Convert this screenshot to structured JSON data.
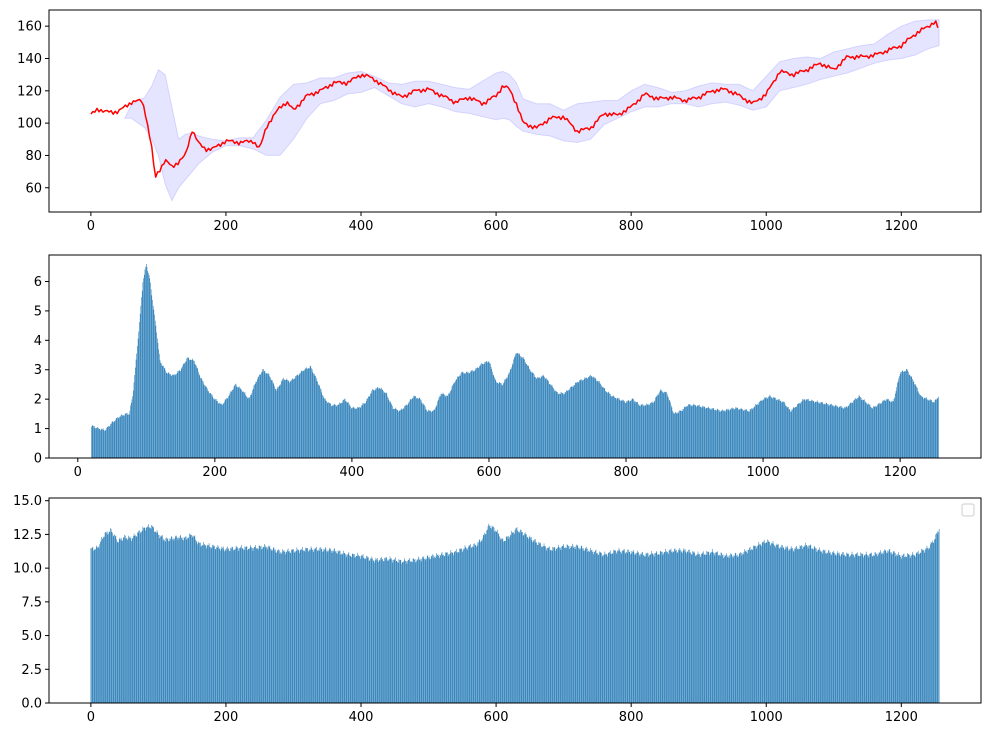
{
  "chart_data": [
    {
      "type": "line",
      "title": "",
      "xlabel": "",
      "ylabel": "",
      "xlim": [
        -62,
        1318
      ],
      "ylim": [
        45,
        170
      ],
      "xticks": [
        0,
        200,
        400,
        600,
        800,
        1000,
        1200
      ],
      "yticks": [
        60,
        80,
        100,
        120,
        140,
        160
      ],
      "grid": false,
      "colors": {
        "line": "#ff0000",
        "band": "#0000ff"
      },
      "series": [
        {
          "kind": "line",
          "x": [
            0,
            10,
            20,
            40,
            60,
            75,
            80,
            90,
            95,
            100,
            110,
            120,
            130,
            140,
            150,
            160,
            170,
            180,
            200,
            220,
            240,
            250,
            260,
            270,
            280,
            290,
            300,
            320,
            340,
            360,
            380,
            400,
            410,
            420,
            440,
            460,
            480,
            500,
            520,
            540,
            560,
            580,
            600,
            610,
            620,
            630,
            640,
            660,
            680,
            700,
            720,
            740,
            760,
            780,
            800,
            820,
            840,
            860,
            880,
            900,
            920,
            940,
            960,
            980,
            1000,
            1020,
            1040,
            1060,
            1080,
            1100,
            1120,
            1140,
            1160,
            1180,
            1200,
            1220,
            1240,
            1250,
            1256
          ],
          "y": [
            105,
            109,
            107,
            107,
            113,
            114,
            108,
            85,
            66,
            70,
            77,
            73,
            76,
            80,
            96,
            87,
            84,
            84,
            89,
            88,
            89,
            84,
            98,
            104,
            110,
            113,
            108,
            117,
            120,
            125,
            125,
            130,
            129,
            127,
            121,
            116,
            120,
            121,
            117,
            113,
            116,
            112,
            117,
            123,
            121,
            112,
            100,
            97,
            103,
            104,
            95,
            97,
            106,
            105,
            110,
            118,
            115,
            116,
            114,
            116,
            120,
            121,
            117,
            112,
            118,
            132,
            130,
            133,
            137,
            133,
            141,
            141,
            142,
            145,
            148,
            155,
            160,
            163,
            157
          ]
        }
      ],
      "band": {
        "x": [
          50,
          60,
          70,
          80,
          90,
          100,
          110,
          120,
          130,
          140,
          150,
          160,
          180,
          200,
          220,
          240,
          260,
          280,
          300,
          320,
          340,
          360,
          380,
          400,
          420,
          440,
          460,
          480,
          500,
          520,
          540,
          560,
          580,
          600,
          610,
          620,
          630,
          640,
          660,
          680,
          700,
          720,
          740,
          760,
          780,
          800,
          820,
          840,
          860,
          880,
          900,
          920,
          940,
          960,
          980,
          1000,
          1020,
          1040,
          1060,
          1080,
          1100,
          1120,
          1140,
          1160,
          1180,
          1200,
          1220,
          1240,
          1256
        ],
        "upper": [
          103,
          111,
          114,
          116,
          123,
          133,
          130,
          110,
          90,
          93,
          94,
          92,
          90,
          89,
          91,
          91,
          102,
          116,
          124,
          125,
          128,
          128,
          131,
          132,
          129,
          125,
          124,
          126,
          126,
          124,
          122,
          121,
          126,
          131,
          132,
          130,
          125,
          115,
          112,
          112,
          108,
          112,
          113,
          114,
          114,
          120,
          124,
          122,
          119,
          120,
          123,
          125,
          124,
          124,
          120,
          129,
          138,
          140,
          141,
          140,
          144,
          146,
          148,
          149,
          155,
          160,
          163,
          164,
          164
        ],
        "lower": [
          103,
          103,
          100,
          97,
          90,
          80,
          62,
          52,
          60,
          65,
          70,
          75,
          82,
          86,
          86,
          84,
          80,
          80,
          90,
          103,
          112,
          114,
          118,
          119,
          122,
          117,
          112,
          110,
          112,
          110,
          107,
          106,
          104,
          102,
          103,
          102,
          98,
          95,
          93,
          92,
          89,
          88,
          90,
          99,
          103,
          107,
          110,
          110,
          112,
          112,
          110,
          112,
          113,
          111,
          108,
          110,
          120,
          122,
          124,
          127,
          129,
          131,
          134,
          137,
          139,
          140,
          142,
          146,
          148
        ]
      }
    },
    {
      "type": "bar",
      "title": "",
      "xlabel": "",
      "ylabel": "",
      "xlim": [
        -42,
        1318
      ],
      "ylim": [
        0,
        6.9
      ],
      "xticks": [
        0,
        200,
        400,
        600,
        800,
        1000,
        1200
      ],
      "yticks": [
        0,
        1,
        2,
        3,
        4,
        5,
        6
      ],
      "grid": false,
      "colors": {
        "bar": "#1f77b4"
      },
      "bar_range": [
        20,
        1256
      ],
      "keypoints": {
        "x": [
          20,
          30,
          40,
          50,
          60,
          70,
          75,
          80,
          85,
          90,
          95,
          100,
          105,
          110,
          115,
          120,
          130,
          140,
          150,
          160,
          170,
          180,
          190,
          200,
          210,
          220,
          230,
          240,
          250,
          260,
          270,
          280,
          290,
          300,
          310,
          320,
          330,
          340,
          350,
          360,
          370,
          380,
          390,
          400,
          410,
          420,
          430,
          440,
          450,
          460,
          470,
          480,
          490,
          500,
          510,
          520,
          530,
          540,
          550,
          560,
          570,
          580,
          590,
          600,
          610,
          620,
          630,
          640,
          650,
          660,
          670,
          680,
          690,
          700,
          710,
          720,
          730,
          740,
          750,
          760,
          770,
          780,
          790,
          800,
          810,
          820,
          830,
          840,
          850,
          860,
          870,
          880,
          890,
          900,
          920,
          940,
          960,
          980,
          1000,
          1010,
          1020,
          1030,
          1040,
          1060,
          1080,
          1100,
          1120,
          1130,
          1140,
          1150,
          1160,
          1180,
          1190,
          1200,
          1210,
          1220,
          1230,
          1240,
          1250,
          1256
        ],
        "y": [
          1.1,
          1.0,
          0.95,
          1.2,
          1.4,
          1.5,
          1.5,
          2.1,
          3.3,
          4.6,
          6.0,
          6.6,
          6.1,
          5.2,
          4.3,
          3.3,
          2.9,
          2.8,
          3.0,
          3.4,
          3.3,
          2.7,
          2.3,
          2.0,
          1.8,
          2.1,
          2.5,
          2.3,
          2.0,
          2.6,
          3.0,
          2.8,
          2.3,
          2.7,
          2.6,
          2.8,
          3.0,
          3.1,
          2.6,
          2.0,
          1.8,
          1.8,
          2.0,
          1.7,
          1.7,
          1.9,
          2.3,
          2.4,
          2.2,
          1.7,
          1.6,
          1.8,
          2.1,
          2.0,
          1.6,
          1.6,
          2.2,
          2.1,
          2.6,
          2.9,
          2.9,
          3.0,
          3.2,
          3.3,
          2.6,
          2.5,
          2.9,
          3.6,
          3.4,
          3.0,
          2.7,
          2.8,
          2.5,
          2.2,
          2.2,
          2.4,
          2.6,
          2.7,
          2.8,
          2.6,
          2.3,
          2.1,
          2.0,
          1.9,
          2.0,
          1.8,
          1.8,
          1.9,
          2.3,
          2.2,
          1.5,
          1.6,
          1.8,
          1.8,
          1.7,
          1.6,
          1.7,
          1.6,
          2.0,
          2.1,
          2.0,
          1.9,
          1.6,
          2.0,
          1.9,
          1.8,
          1.7,
          1.9,
          2.1,
          1.9,
          1.7,
          2.0,
          1.9,
          2.9,
          3.0,
          2.6,
          2.1,
          2.0,
          1.9,
          2.1
        ]
      }
    },
    {
      "type": "bar",
      "title": "",
      "xlabel": "",
      "ylabel": "",
      "xlim": [
        -62,
        1318
      ],
      "ylim": [
        0,
        15.2
      ],
      "xticks": [
        0,
        200,
        400,
        600,
        800,
        1000,
        1200
      ],
      "yticks": [
        "0.0",
        "2.5",
        "5.0",
        "7.5",
        "10.0",
        "12.5",
        "15.0"
      ],
      "grid": false,
      "legend": "top-right",
      "colors": {
        "bar": "#1f77b4"
      },
      "bar_range": [
        0,
        1256
      ],
      "keypoints": {
        "x": [
          0,
          10,
          20,
          30,
          40,
          50,
          60,
          70,
          80,
          90,
          100,
          110,
          120,
          130,
          140,
          150,
          160,
          180,
          200,
          220,
          240,
          260,
          280,
          300,
          320,
          340,
          360,
          380,
          400,
          420,
          440,
          460,
          480,
          500,
          520,
          540,
          560,
          570,
          580,
          590,
          600,
          610,
          620,
          630,
          640,
          660,
          680,
          700,
          720,
          740,
          760,
          780,
          800,
          820,
          840,
          860,
          880,
          900,
          920,
          940,
          960,
          980,
          1000,
          1020,
          1040,
          1060,
          1080,
          1100,
          1120,
          1140,
          1160,
          1180,
          1200,
          1220,
          1240,
          1250,
          1256
        ],
        "y": [
          11.4,
          11.5,
          12.5,
          12.8,
          12.0,
          12.3,
          12.2,
          12.6,
          13.0,
          13.1,
          12.5,
          12.1,
          12.2,
          12.3,
          12.2,
          12.5,
          11.8,
          11.6,
          11.4,
          11.5,
          11.5,
          11.6,
          11.2,
          11.3,
          11.4,
          11.4,
          11.3,
          11.0,
          10.9,
          10.6,
          10.7,
          10.5,
          10.6,
          10.8,
          11.0,
          11.2,
          11.6,
          11.7,
          12.2,
          13.2,
          12.8,
          12.0,
          12.4,
          12.9,
          12.6,
          11.9,
          11.4,
          11.6,
          11.6,
          11.3,
          11.0,
          11.3,
          11.2,
          11.0,
          11.1,
          11.3,
          11.3,
          11.0,
          11.2,
          10.9,
          11.0,
          11.5,
          12.0,
          11.6,
          11.4,
          11.7,
          11.3,
          11.1,
          11.0,
          11.0,
          11.0,
          11.3,
          10.9,
          11.0,
          11.5,
          12.2,
          13.0
        ]
      }
    }
  ]
}
